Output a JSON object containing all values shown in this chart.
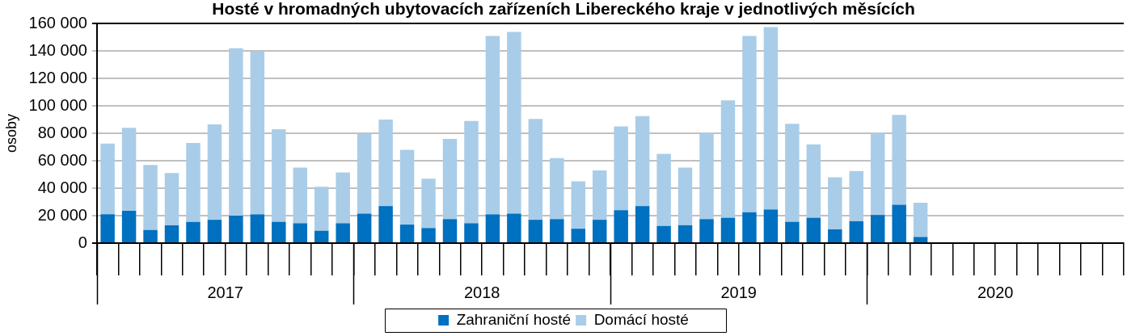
{
  "chart_data": {
    "type": "bar",
    "title": "Hosté v hromadných ubytovacích zařízeních Libereckého kraje v jednotlivých měsících",
    "ylabel": "osoby",
    "categories": [
      null,
      null,
      null,
      null,
      null,
      null,
      null,
      null,
      null,
      null,
      null,
      null,
      null,
      null,
      null,
      null,
      null,
      null,
      null,
      null,
      null,
      null,
      null,
      null,
      null,
      null,
      null,
      null,
      null,
      null,
      null,
      null,
      null,
      null,
      null,
      null,
      null,
      null,
      null,
      null,
      null,
      null,
      null,
      null,
      null,
      null,
      null,
      null
    ],
    "annotations": [
      "2017",
      "2018",
      "2019",
      "2020"
    ],
    "stacked": true,
    "series": [
      {
        "name": "Zahraniční hosté",
        "color": "#0070c0",
        "values": [
          21000,
          23500,
          9500,
          13000,
          15500,
          17000,
          20000,
          21000,
          15500,
          14500,
          9000,
          14500,
          21500,
          27000,
          13500,
          11000,
          17500,
          14500,
          21000,
          21500,
          17000,
          17500,
          10500,
          17000,
          24000,
          27000,
          12500,
          13000,
          17500,
          18500,
          22500,
          24500,
          15500,
          18500,
          10000,
          16000,
          20500,
          28000,
          4500,
          null,
          null,
          null,
          null,
          null,
          null,
          null,
          null,
          null
        ]
      },
      {
        "name": "Domácí hosté",
        "color": "#a9cde8",
        "values": [
          51500,
          60500,
          47500,
          38000,
          57500,
          69500,
          122000,
          118500,
          67500,
          40500,
          32000,
          37000,
          58500,
          63000,
          54500,
          36000,
          58500,
          74500,
          130000,
          132500,
          73500,
          44500,
          34500,
          36000,
          61000,
          65500,
          52500,
          42000,
          63000,
          85500,
          128500,
          133000,
          71500,
          53500,
          38000,
          36500,
          60000,
          65500,
          25000,
          null,
          null,
          null,
          null,
          null,
          null,
          null,
          null,
          null
        ]
      }
    ],
    "ylim": [
      0,
      160000
    ],
    "yticks": [
      {
        "value": 0,
        "label": "0"
      },
      {
        "value": 20000,
        "label": "20 000"
      },
      {
        "value": 40000,
        "label": "40 000"
      },
      {
        "value": 60000,
        "label": "60 000"
      },
      {
        "value": 80000,
        "label": "80 000"
      },
      {
        "value": 100000,
        "label": "100 000"
      },
      {
        "value": 120000,
        "label": "120 000"
      },
      {
        "value": 140000,
        "label": "140 000"
      },
      {
        "value": 160000,
        "label": "160 000"
      }
    ],
    "grid": "y",
    "legend": "bottom"
  }
}
